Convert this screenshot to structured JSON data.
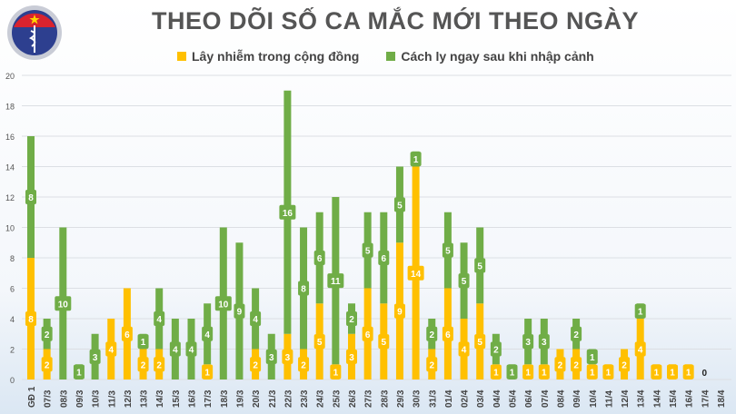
{
  "logo": {
    "text_top": "BỘ Y TẾ",
    "text_bottom": "MINISTRY OF HEALTH"
  },
  "chart_data": {
    "type": "bar",
    "stacked": true,
    "title": "THEO DÕI SỐ CA MẮC MỚI THEO NGÀY",
    "legend_position": "top",
    "grid": true,
    "ylim": [
      0,
      20
    ],
    "yticks": [
      0,
      2,
      4,
      6,
      8,
      10,
      12,
      14,
      16,
      18,
      20
    ],
    "categories": [
      "GĐ 1",
      "07/3",
      "08/3",
      "09/3",
      "10/3",
      "11/3",
      "12/3",
      "13/3",
      "14/3",
      "15/3",
      "16/3",
      "17/3",
      "18/3",
      "19/3",
      "20/3",
      "21/3",
      "22/3",
      "23/3",
      "24/3",
      "25/3",
      "26/3",
      "27/3",
      "28/3",
      "29/3",
      "30/3",
      "31/3",
      "01/4",
      "02/4",
      "03/4",
      "04/4",
      "05/4",
      "06/4",
      "07/4",
      "08/4",
      "09/4",
      "10/4",
      "11/4",
      "12/4",
      "13/4",
      "14/4",
      "15/4",
      "16/4",
      "17/4",
      "18/4"
    ],
    "series": [
      {
        "name": "Lây nhiễm trong cộng đồng",
        "color": "#FFC000",
        "values": [
          8,
          2,
          0,
          0,
          0,
          4,
          6,
          2,
          2,
          0,
          0,
          1,
          0,
          0,
          2,
          0,
          3,
          2,
          5,
          1,
          3,
          6,
          5,
          9,
          14,
          2,
          6,
          4,
          5,
          1,
          0,
          1,
          1,
          2,
          2,
          1,
          1,
          2,
          4,
          1,
          1,
          1,
          0,
          null
        ]
      },
      {
        "name": "Cách ly ngay sau khi nhập cảnh",
        "color": "#70AD47",
        "values": [
          8,
          2,
          10,
          1,
          3,
          0,
          0,
          1,
          4,
          4,
          4,
          4,
          10,
          9,
          4,
          3,
          16,
          8,
          6,
          11,
          2,
          5,
          6,
          5,
          1,
          2,
          5,
          5,
          5,
          2,
          1,
          3,
          3,
          0,
          2,
          1,
          0,
          0,
          1,
          0,
          0,
          0,
          0,
          null
        ]
      }
    ],
    "annotations": [
      {
        "category": "17/4",
        "text": "0"
      }
    ]
  }
}
